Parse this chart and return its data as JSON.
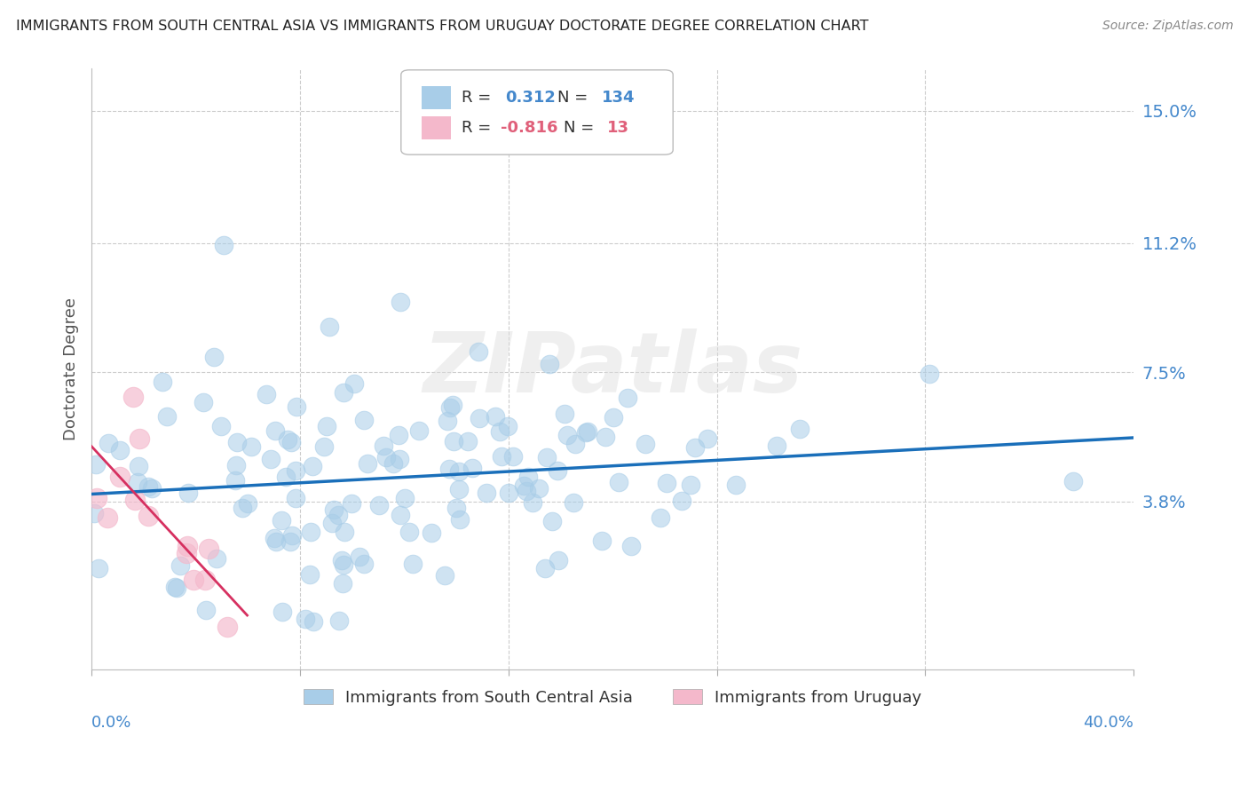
{
  "title": "IMMIGRANTS FROM SOUTH CENTRAL ASIA VS IMMIGRANTS FROM URUGUAY DOCTORATE DEGREE CORRELATION CHART",
  "source": "Source: ZipAtlas.com",
  "ylabel": "Doctorate Degree",
  "ytick_vals": [
    0.038,
    0.075,
    0.112,
    0.15
  ],
  "ytick_labels": [
    "3.8%",
    "7.5%",
    "11.2%",
    "15.0%"
  ],
  "xlim": [
    0.0,
    0.4
  ],
  "ylim": [
    -0.01,
    0.162
  ],
  "r_blue": 0.312,
  "n_blue": 134,
  "r_pink": -0.816,
  "n_pink": 13,
  "legend_label_blue": "Immigrants from South Central Asia",
  "legend_label_pink": "Immigrants from Uruguay",
  "blue_color": "#a8cde8",
  "pink_color": "#f4b8cb",
  "line_blue": "#1a6fba",
  "line_pink": "#d63060",
  "background_color": "#ffffff",
  "watermark_text": "ZIPatlas",
  "grid_color": "#cccccc",
  "title_color": "#222222",
  "source_color": "#888888",
  "ylabel_color": "#555555",
  "tick_label_color": "#4488cc"
}
